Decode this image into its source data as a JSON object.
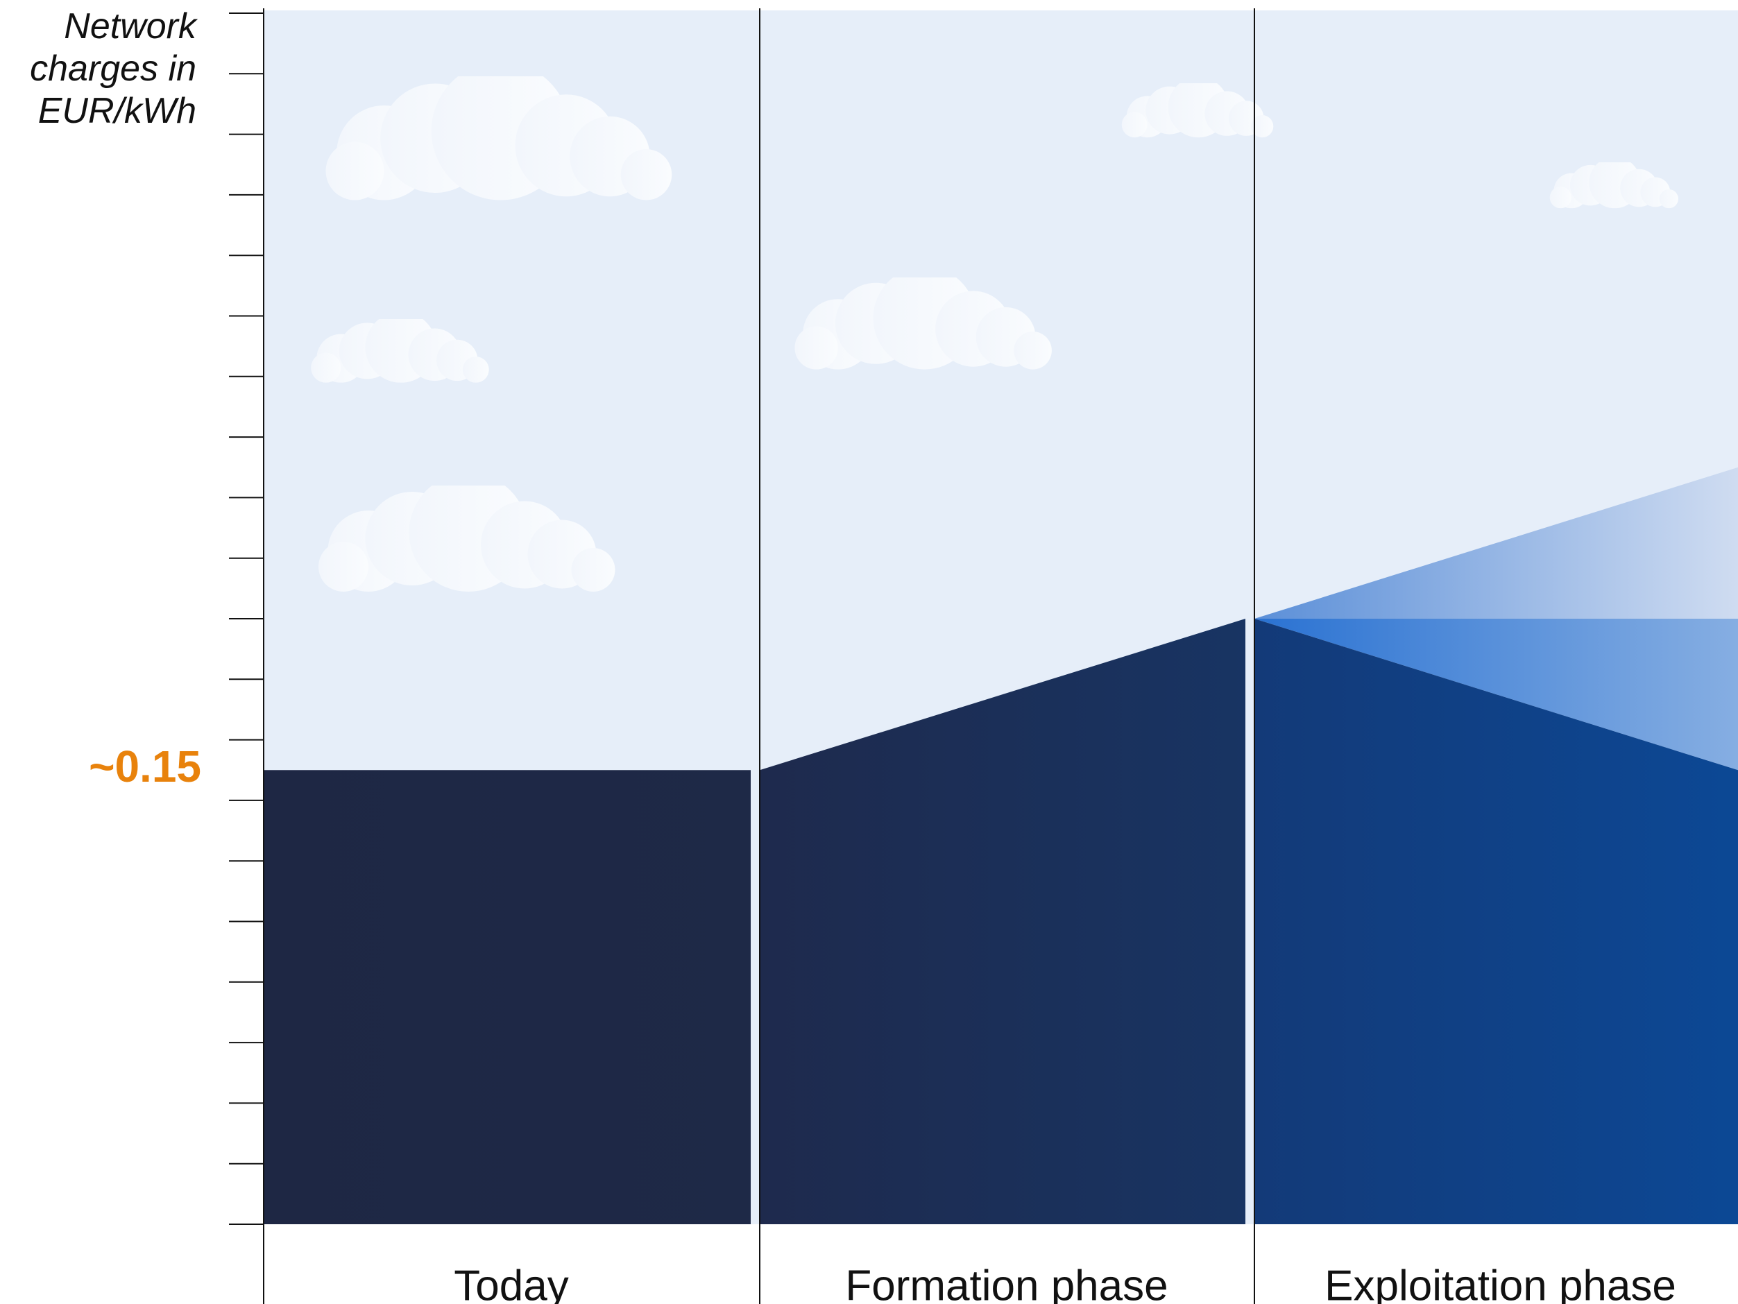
{
  "chart_data": {
    "type": "area",
    "y_label": "Network charges in EUR/kWh",
    "ylim": [
      0,
      0.4
    ],
    "annotation": {
      "value": 0.15,
      "label": "~0.15",
      "color": "#e8820c"
    },
    "phases": [
      {
        "label": "Today",
        "start": 0.15,
        "end": 0.15
      },
      {
        "label": "Formation phase",
        "start": 0.15,
        "end": 0.2
      },
      {
        "label": "Exploitation phase",
        "start": 0.2,
        "end_high": 0.25,
        "end_low": 0.15
      }
    ]
  }
}
